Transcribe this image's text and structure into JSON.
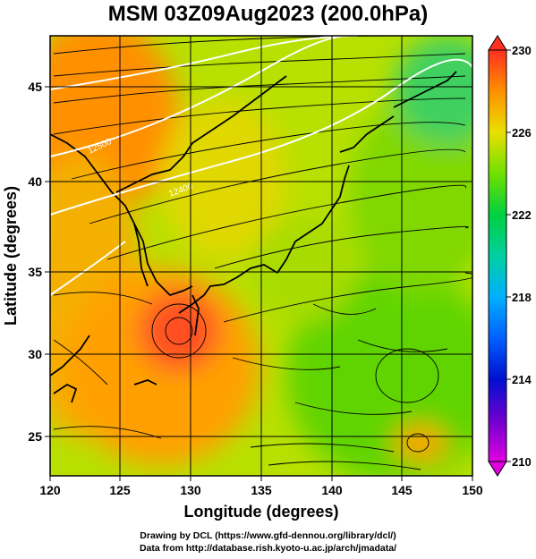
{
  "title": "MSM 03Z09Aug2023 (200.0hPa)",
  "map": {
    "x_axis": {
      "label": "Longitude (degrees)",
      "range": [
        120,
        150
      ],
      "ticks": [
        "120",
        "125",
        "130",
        "135",
        "140",
        "145",
        "150"
      ]
    },
    "y_axis": {
      "label": "Latitude  (degrees)",
      "range": [
        23,
        48
      ],
      "ticks": [
        "25",
        "30",
        "35",
        "40",
        "45"
      ]
    },
    "gridlines": true,
    "contour_labels": [
      "12500",
      "12400"
    ],
    "field": "geopotential height contours with streamlines",
    "features": [
      {
        "name": "upper-level anticyclone / warm center",
        "lon": 128.5,
        "lat": 31
      },
      {
        "name": "small warm vortex",
        "lon": 146.5,
        "lat": 24.5
      }
    ]
  },
  "colorbar": {
    "min_label": "210",
    "max_label": "230",
    "ticks": [
      "230",
      "226",
      "222",
      "218",
      "214",
      "210"
    ],
    "palette": [
      "#e000e0",
      "#0000c0",
      "#00a0ff",
      "#00c060",
      "#00d040",
      "#a0e000",
      "#f0e000",
      "#ff8000",
      "#ff2000"
    ]
  },
  "credits": {
    "line1": "Drawing by DCL (https://www.gfd-dennou.org/library/dcl/)",
    "line2": "Data from http://database.rish.kyoto-u.ac.jp/arch/jmadata/"
  }
}
